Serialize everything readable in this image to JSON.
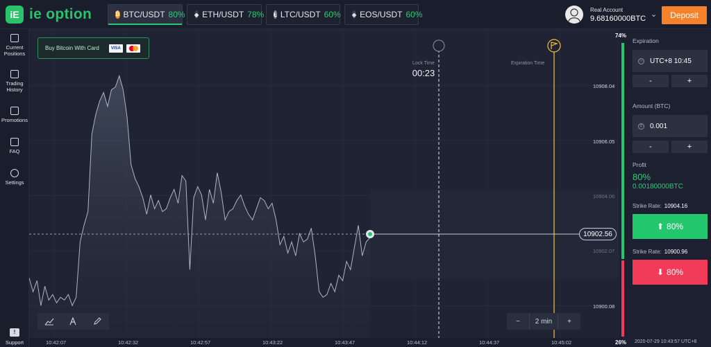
{
  "brand": {
    "name": "ie option",
    "badge": "iE"
  },
  "assets": [
    {
      "pair": "BTC/USDT",
      "payout": "80%",
      "coin": "bitcoin-icon",
      "color": "#f7931a",
      "symbol": "₿",
      "active": true
    },
    {
      "pair": "ETH/USDT",
      "payout": "78%",
      "coin": "ethereum-icon",
      "color": "#e6e8ee",
      "symbol": "◆",
      "active": false
    },
    {
      "pair": "LTC/USDT",
      "payout": "60%",
      "coin": "litecoin-icon",
      "color": "#bfbbbb",
      "symbol": "Ł",
      "active": false
    },
    {
      "pair": "EOS/USDT",
      "payout": "60%",
      "coin": "eos-icon",
      "color": "#e6e8ee",
      "symbol": "◈",
      "active": false
    }
  ],
  "account": {
    "label": "Real Account",
    "balance": "9.68160000BTC"
  },
  "deposit_label": "Deposit",
  "sidebar": [
    {
      "label": "Current\nPositions",
      "icon": "briefcase-icon"
    },
    {
      "label": "Trading\nHistory",
      "icon": "chart-history-icon"
    },
    {
      "label": "Promotions",
      "icon": "promotions-icon"
    },
    {
      "label": "FAQ",
      "icon": "question-icon"
    },
    {
      "label": "Settings",
      "icon": "settings-icon"
    },
    {
      "label": "Support",
      "icon": "chat-support-icon"
    }
  ],
  "chart": {
    "buy_banner": "Buy Bitcoin With Card",
    "lock_label": "Lock Time",
    "lock_time": "00:23",
    "expiration_label": "Expiration Time",
    "current_price": "10902.56",
    "y_ticks": [
      "10908.04",
      "10906.05",
      "10904.06",
      "10902.07",
      "10900.08"
    ],
    "x_ticks": [
      "10:42:07",
      "10:42:32",
      "10:42:57",
      "10:43:22",
      "10:43:47",
      "10:44:12",
      "10:44:37",
      "10:45:02"
    ],
    "zoom_label": "2 min",
    "series": [
      10901.1,
      10900.6,
      10901.0,
      10900.1,
      10900.8,
      10900.3,
      10900.5,
      10900.2,
      10900.4,
      10900.3,
      10900.5,
      10900.1,
      10900.4,
      10902.4,
      10903.0,
      10903.5,
      10906.3,
      10907.0,
      10907.5,
      10907.8,
      10907.3,
      10907.9,
      10908.0,
      10908.4,
      10907.9,
      10906.9,
      10905.2,
      10904.7,
      10904.4,
      10904.0,
      10903.4,
      10904.1,
      10903.6,
      10903.9,
      10903.5,
      10903.6,
      10904.0,
      10904.3,
      10903.8,
      10904.8,
      10904.6,
      10901.4,
      10904.0,
      10904.4,
      10904.1,
      10903.2,
      10904.3,
      10903.8,
      10904.9,
      10904.2,
      10903.2,
      10903.5,
      10903.6,
      10903.9,
      10904.1,
      10903.7,
      10903.4,
      10903.2,
      10903.6,
      10904.0,
      10903.9,
      10903.6,
      10903.8,
      10903.2,
      10902.3,
      10902.6,
      10902.0,
      10902.4,
      10901.9,
      10902.7,
      10902.4,
      10902.5,
      10902.9,
      10901.9,
      10900.6,
      10900.4,
      10900.5,
      10900.9,
      10900.6,
      10901.2,
      10901.0,
      10901.7,
      10901.4,
      10902.2,
      10903.0,
      10901.9,
      10902.4,
      10902.56
    ]
  },
  "percent": {
    "up": "74%",
    "down": "26%"
  },
  "panel": {
    "expiration_label": "Expiration",
    "expiration_value": "UTC+8 10:45",
    "amount_label": "Amount (BTC)",
    "amount_value": "0.001",
    "minus": "-",
    "plus": "+",
    "profit_label": "Profit",
    "profit_pct": "80%",
    "profit_value": "0.00180000BTC",
    "strike_label": "Strike Rate:",
    "strike_up": "10904.16",
    "up_button": "80%",
    "strike_down": "10900.96",
    "down_button": "80%"
  },
  "footer_time": "2020-07-29 10:43:57 UTC+8"
}
